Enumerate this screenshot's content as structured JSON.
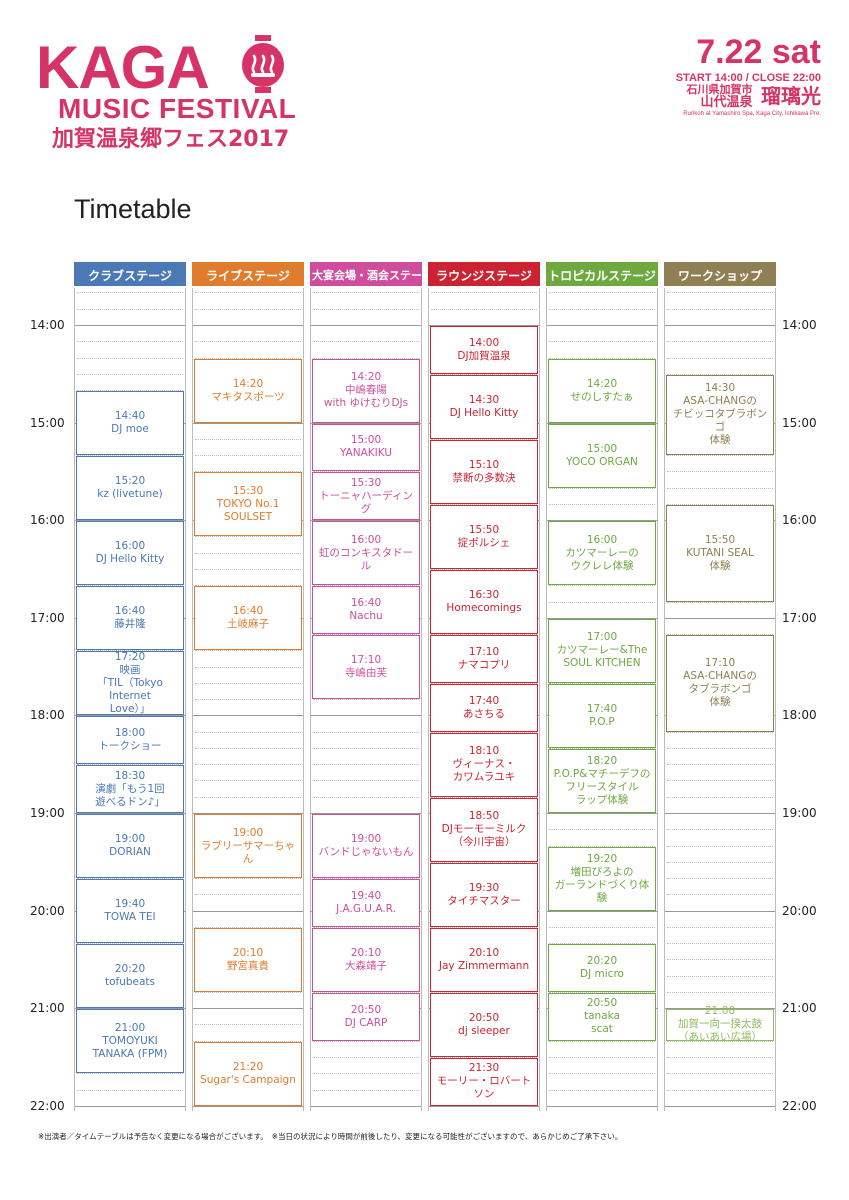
{
  "header": {
    "logo_kaga": "KAGA",
    "logo_music": "MUSIC FESTIVAL",
    "logo_jp": "加賀温泉郷フェス2017",
    "date": "7.22 sat",
    "hours": "START 14:00 / CLOSE 22:00",
    "loc_small_1": "石川県加賀市",
    "loc_small_2": "山代温泉",
    "venue": "瑠璃光",
    "address_en": "Rurikoh at Yamashiro Spa, Kaga City, Ishikawa Pre."
  },
  "title": "Timetable",
  "time_labels": [
    "14:00",
    "15:00",
    "16:00",
    "17:00",
    "18:00",
    "19:00",
    "20:00",
    "21:00",
    "22:00"
  ],
  "stages": [
    {
      "name": "クラブステージ",
      "color": "#4a79b6",
      "events": [
        {
          "time": "14:40",
          "name": "DJ moe",
          "start": "14:40",
          "end": "15:20"
        },
        {
          "time": "15:20",
          "name": "kz (livetune)",
          "start": "15:20",
          "end": "16:00"
        },
        {
          "time": "16:00",
          "name": "DJ Hello Kitty",
          "start": "16:00",
          "end": "16:40"
        },
        {
          "time": "16:40",
          "name": "藤井隆",
          "start": "16:40",
          "end": "17:20"
        },
        {
          "time": "17:20",
          "name": "映画\n「TIL（Tokyo Internet\nLove）」",
          "start": "17:20",
          "end": "18:00"
        },
        {
          "time": "18:00",
          "name": "トークショー",
          "start": "18:00",
          "end": "18:30"
        },
        {
          "time": "18:30",
          "name": "演劇「もう1回\n遊べるドン♪」",
          "start": "18:30",
          "end": "19:00"
        },
        {
          "time": "19:00",
          "name": "DORIAN",
          "start": "19:00",
          "end": "19:40"
        },
        {
          "time": "19:40",
          "name": "TOWA TEI",
          "start": "19:40",
          "end": "20:20"
        },
        {
          "time": "20:20",
          "name": "tofubeats",
          "start": "20:20",
          "end": "21:00"
        },
        {
          "time": "21:00",
          "name": "TOMOYUKI\nTANAKA (FPM)",
          "start": "21:00",
          "end": "21:40"
        }
      ]
    },
    {
      "name": "ライブステージ",
      "color": "#e07c2d",
      "events": [
        {
          "time": "14:20",
          "name": "マキタスポーツ",
          "start": "14:20",
          "end": "15:00"
        },
        {
          "time": "15:30",
          "name": "TOKYO No.1\nSOULSET",
          "start": "15:30",
          "end": "16:10"
        },
        {
          "time": "16:40",
          "name": "土岐麻子",
          "start": "16:40",
          "end": "17:20"
        },
        {
          "time": "19:00",
          "name": "ラブリーサマーちゃん",
          "start": "19:00",
          "end": "19:40"
        },
        {
          "time": "20:10",
          "name": "野宮真貴",
          "start": "20:10",
          "end": "20:50"
        },
        {
          "time": "21:20",
          "name": "Sugar's Campaign",
          "start": "21:20",
          "end": "22:00"
        }
      ]
    },
    {
      "name": "大宴会場・酒会ステージ",
      "color": "#cf4d9c",
      "events": [
        {
          "time": "14:20",
          "name": "中嶋春陽\nwith ゆけむりDJs",
          "start": "14:20",
          "end": "15:00"
        },
        {
          "time": "15:00",
          "name": "YANAKIKU",
          "start": "15:00",
          "end": "15:30"
        },
        {
          "time": "15:30",
          "name": "トーニャハーディング",
          "start": "15:30",
          "end": "16:00"
        },
        {
          "time": "16:00",
          "name": "虹のコンキスタドール",
          "start": "16:00",
          "end": "16:40"
        },
        {
          "time": "16:40",
          "name": "Nachu",
          "start": "16:40",
          "end": "17:10"
        },
        {
          "time": "17:10",
          "name": "寺嶋由芙",
          "start": "17:10",
          "end": "17:50"
        },
        {
          "time": "19:00",
          "name": "バンドじゃないもん",
          "start": "19:00",
          "end": "19:40"
        },
        {
          "time": "19:40",
          "name": "J.A.G.U.A.R.",
          "start": "19:40",
          "end": "20:10"
        },
        {
          "time": "20:10",
          "name": "大森靖子",
          "start": "20:10",
          "end": "20:50"
        },
        {
          "time": "20:50",
          "name": "DJ CARP",
          "start": "20:50",
          "end": "21:20"
        }
      ]
    },
    {
      "name": "ラウンジステージ",
      "color": "#cc2332",
      "events": [
        {
          "time": "14:00",
          "name": "DJ加賀温泉",
          "start": "14:00",
          "end": "14:30"
        },
        {
          "time": "14:30",
          "name": "DJ Hello Kitty",
          "start": "14:30",
          "end": "15:10"
        },
        {
          "time": "15:10",
          "name": "禁断の多数決",
          "start": "15:10",
          "end": "15:50"
        },
        {
          "time": "15:50",
          "name": "掟ポルシェ",
          "start": "15:50",
          "end": "16:30"
        },
        {
          "time": "16:30",
          "name": "Homecomings",
          "start": "16:30",
          "end": "17:10"
        },
        {
          "time": "17:10",
          "name": "ナマコプリ",
          "start": "17:10",
          "end": "17:40"
        },
        {
          "time": "17:40",
          "name": "あさちる",
          "start": "17:40",
          "end": "18:10"
        },
        {
          "time": "18:10",
          "name": "ヴィーナス・\nカワムラユキ",
          "start": "18:10",
          "end": "18:50"
        },
        {
          "time": "18:50",
          "name": "DJモーモーミルク\n（今川宇宙）",
          "start": "18:50",
          "end": "19:30"
        },
        {
          "time": "19:30",
          "name": "タイチマスター",
          "start": "19:30",
          "end": "20:10"
        },
        {
          "time": "20:10",
          "name": "Jay Zimmermann",
          "start": "20:10",
          "end": "20:50"
        },
        {
          "time": "20:50",
          "name": "dj sleeper",
          "start": "20:50",
          "end": "21:30"
        },
        {
          "time": "21:30",
          "name": "モーリー・ロバートソン",
          "start": "21:30",
          "end": "22:00"
        }
      ]
    },
    {
      "name": "トロピカルステージ",
      "color": "#6ea940",
      "events": [
        {
          "time": "14:20",
          "name": "せのしすたぁ",
          "start": "14:20",
          "end": "15:00"
        },
        {
          "time": "15:00",
          "name": "YOCO ORGAN",
          "start": "15:00",
          "end": "15:40"
        },
        {
          "time": "16:00",
          "name": "カツマーレーの\nウクレレ体験",
          "start": "16:00",
          "end": "16:40"
        },
        {
          "time": "17:00",
          "name": "カツマーレー&The\nSOUL KITCHEN",
          "start": "17:00",
          "end": "17:40"
        },
        {
          "time": "17:40",
          "name": "P.O.P",
          "start": "17:40",
          "end": "18:20"
        },
        {
          "time": "18:20",
          "name": "P.O.P&マチーデフの\nフリースタイル\nラップ体験",
          "start": "18:20",
          "end": "19:00"
        },
        {
          "time": "19:20",
          "name": "増田ぴろよの\nガーランドづくり体験",
          "start": "19:20",
          "end": "20:00"
        },
        {
          "time": "20:20",
          "name": "DJ micro",
          "start": "20:20",
          "end": "20:50"
        },
        {
          "time": "20:50",
          "name": "tanaka\nscat",
          "start": "20:50",
          "end": "21:20"
        }
      ]
    },
    {
      "name": "ワークショップ",
      "color": "#8f7f52",
      "events": [
        {
          "time": "14:30",
          "name": "ASA-CHANGの\nチビッコタブラボンゴ\n体験",
          "start": "14:30",
          "end": "15:20"
        },
        {
          "time": "15:50",
          "name": "KUTANI SEAL\n体験",
          "start": "15:50",
          "end": "16:50"
        },
        {
          "time": "17:10",
          "name": "ASA-CHANGの\nタブラボンゴ\n体験",
          "start": "17:10",
          "end": "18:10"
        },
        {
          "time": "21:00",
          "name": "加賀一向一揆太鼓\n（あいあい広場）",
          "start": "21:00",
          "end": "21:20",
          "color": "#8dbd58"
        }
      ]
    }
  ],
  "footnote": "※出演者／タイムテーブルは予告なく変更になる場合がございます。　※当日の状況により時間が前後したり、変更になる可能性がございますので、あらかじめご了承下さい。"
}
